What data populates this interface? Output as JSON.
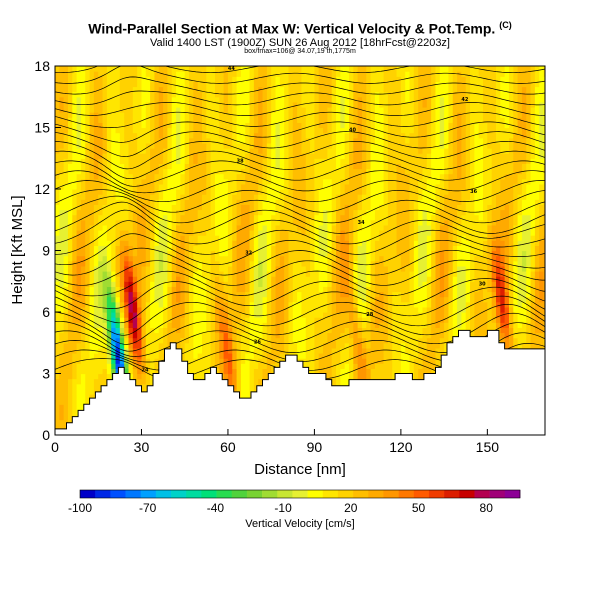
{
  "header": {
    "title": "Wind-Parallel Section at Max W: Vertical Velocity & Pot.Temp.",
    "title_units": "(C)",
    "subtitle": "Valid 1400 LST (1900Z) SUN 26 Aug 2012 [18hrFcst@2203z]",
    "sub_subtitle": "box/fmax=106@ 34.07,19 th,1775m"
  },
  "chart_data": {
    "type": "heatmap",
    "title": "Wind-Parallel Section at Max W: Vertical Velocity & Pot.Temp.",
    "xlabel": "Distance [nm]",
    "ylabel": "Height [Kft MSL]",
    "xlim": [
      0,
      170
    ],
    "ylim": [
      0,
      18
    ],
    "x_ticks": [
      0,
      30,
      60,
      90,
      120,
      150
    ],
    "y_ticks": [
      0,
      3,
      6,
      9,
      12,
      15,
      18
    ],
    "colorbar": {
      "label": "Vertical Velocity [cm/s]",
      "min": -100,
      "max": 95,
      "step": 5,
      "tick_values": [
        -100,
        -70,
        -40,
        -10,
        20,
        50,
        80
      ],
      "colors": [
        "#0000c8",
        "#0028e6",
        "#0050ff",
        "#0078ff",
        "#00a0ff",
        "#00c0e6",
        "#00d2c8",
        "#00dca0",
        "#00e078",
        "#28dc50",
        "#50d23c",
        "#78d232",
        "#a0dc32",
        "#c8e632",
        "#e6f032",
        "#ffff00",
        "#ffe600",
        "#ffd200",
        "#ffbe00",
        "#ffaa00",
        "#ff9600",
        "#ff7800",
        "#ff5a00",
        "#f03c00",
        "#dc1e00",
        "#c80000",
        "#b40050",
        "#a00078",
        "#8c0096"
      ]
    },
    "terrain": {
      "x": [
        0,
        2,
        4,
        6,
        8,
        10,
        12,
        14,
        16,
        18,
        20,
        22,
        24,
        26,
        28,
        30,
        32,
        34,
        36,
        38,
        40,
        42,
        44,
        46,
        48,
        50,
        52,
        54,
        56,
        58,
        60,
        62,
        64,
        66,
        68,
        70,
        72,
        74,
        76,
        78,
        80,
        82,
        84,
        86,
        88,
        90,
        92,
        94,
        96,
        98,
        100,
        102,
        104,
        106,
        108,
        110,
        112,
        114,
        116,
        118,
        120,
        122,
        124,
        126,
        128,
        130,
        132,
        134,
        136,
        138,
        140,
        142,
        144,
        146,
        148,
        150,
        152,
        154,
        156,
        158,
        160,
        162,
        164,
        166,
        168,
        170
      ],
      "height_kft": [
        0.3,
        0.3,
        0.6,
        0.9,
        1.2,
        1.5,
        1.8,
        2.1,
        2.4,
        2.7,
        3.0,
        3.3,
        3.0,
        2.7,
        2.4,
        2.1,
        2.4,
        3.0,
        3.6,
        4.2,
        4.5,
        4.2,
        3.6,
        3.0,
        2.7,
        2.7,
        3.0,
        3.3,
        3.0,
        2.7,
        2.4,
        2.1,
        1.8,
        1.8,
        2.1,
        2.4,
        2.7,
        3.0,
        3.3,
        3.6,
        3.9,
        3.9,
        3.6,
        3.3,
        3.0,
        3.0,
        3.0,
        2.7,
        2.4,
        2.4,
        2.4,
        2.7,
        2.7,
        2.7,
        2.7,
        2.7,
        2.7,
        2.7,
        2.7,
        3.0,
        3.0,
        3.0,
        2.7,
        2.7,
        3.0,
        3.0,
        3.3,
        3.9,
        4.5,
        4.8,
        5.1,
        5.1,
        4.8,
        4.8,
        4.8,
        5.1,
        5.1,
        4.5,
        4.2,
        4.2,
        4.2,
        4.2,
        4.2,
        4.2,
        4.2,
        4.2
      ]
    },
    "theta_contours_c": [
      24,
      26,
      28,
      30,
      32,
      34,
      36,
      38,
      40,
      42,
      44
    ],
    "vertical_velocity_features": [
      {
        "x": 22,
        "z": 3.8,
        "w": -100,
        "desc": "strong downdraft"
      },
      {
        "x": 27,
        "z": 6.0,
        "w": 80,
        "desc": "strong updraft"
      },
      {
        "x": 155,
        "z": 6.5,
        "w": 60,
        "desc": "updraft"
      },
      {
        "x": 105,
        "z": 4.5,
        "w": 45,
        "desc": "updraft"
      },
      {
        "x": 60,
        "z": 4.0,
        "w": 45,
        "desc": "updraft"
      }
    ]
  }
}
